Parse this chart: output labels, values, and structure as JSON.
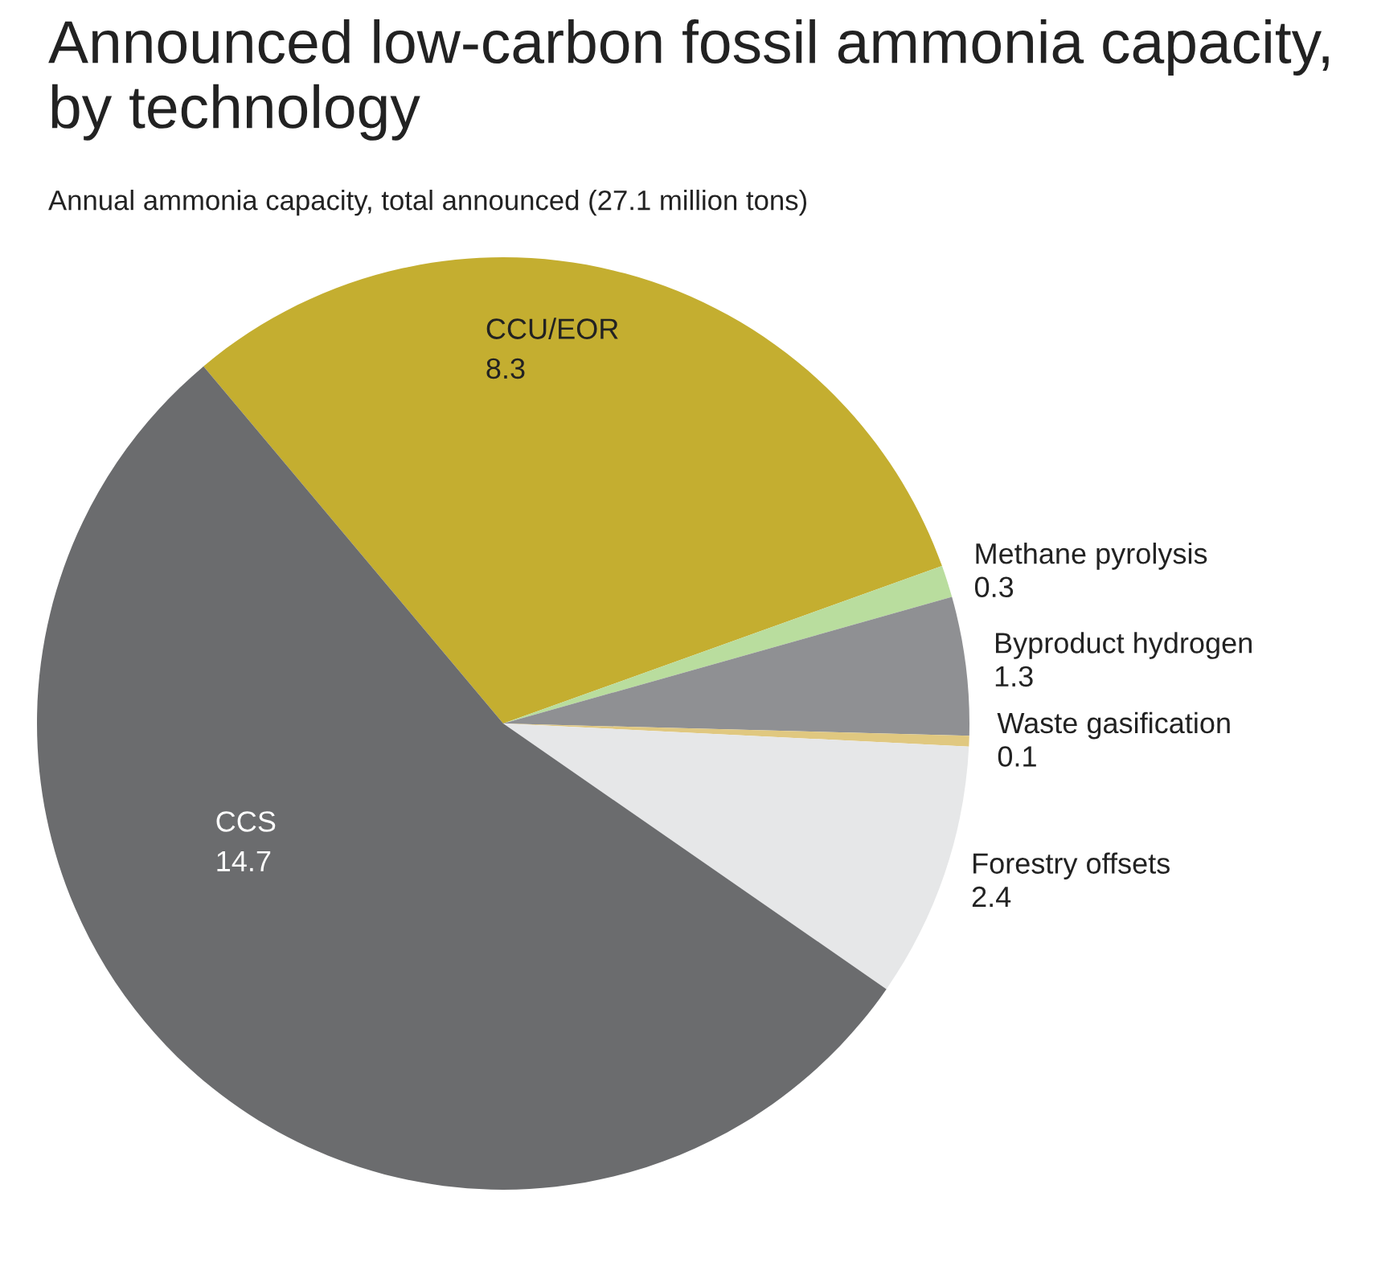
{
  "chart_data": {
    "type": "pie",
    "title": "Announced low-carbon fossil ammonia capacity, by technology",
    "subtitle": "Annual ammonia capacity, total announced (27.1 million tons)",
    "categories": [
      "CCU/EOR",
      "Methane pyrolysis",
      "Byproduct hydrogen",
      "Waste gasification",
      "Forestry offsets",
      "CCS"
    ],
    "values": [
      8.3,
      0.3,
      1.3,
      0.1,
      2.4,
      14.7
    ],
    "colors": [
      "#c4ae30",
      "#b9dd9e",
      "#8f9093",
      "#e0c880",
      "#e6e7e8",
      "#6b6c6e"
    ],
    "data_labels": true
  }
}
